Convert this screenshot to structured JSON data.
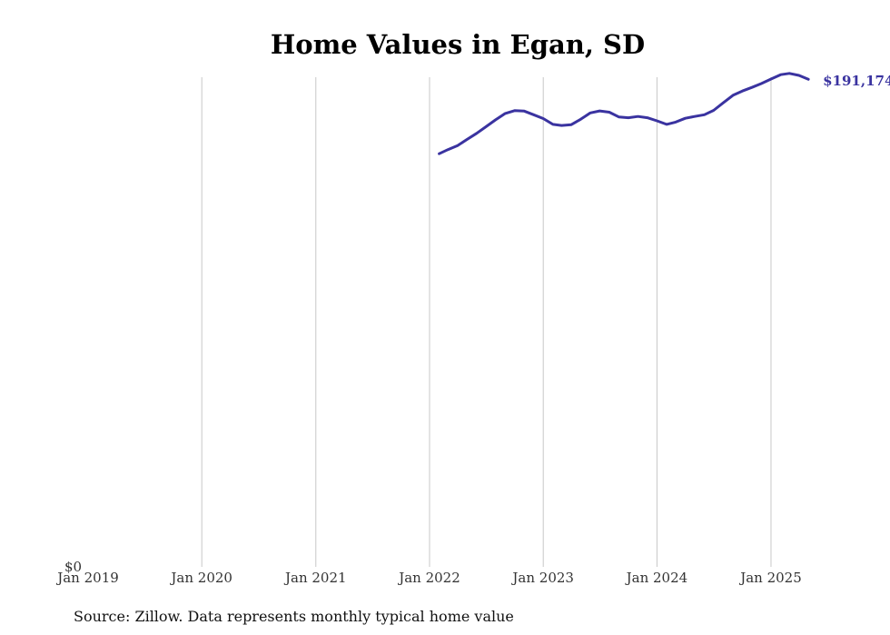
{
  "chart_data": {
    "type": "line",
    "title": "Home Values in Egan, SD",
    "xlabel": "",
    "ylabel": "",
    "x_ticks": [
      "Jan 2019",
      "Jan 2020",
      "Jan 2021",
      "Jan 2022",
      "Jan 2023",
      "Jan 2024",
      "Jan 2025"
    ],
    "y_tick_label": "$0",
    "ylim": [
      0,
      192000
    ],
    "grid": "vertical",
    "series": [
      {
        "color": "#3a33a0",
        "end_label": "$191,174",
        "points": [
          {
            "x": "2022-02",
            "y": 162000
          },
          {
            "x": "2022-03",
            "y": 163600
          },
          {
            "x": "2022-04",
            "y": 165200
          },
          {
            "x": "2022-05",
            "y": 167600
          },
          {
            "x": "2022-06",
            "y": 170000
          },
          {
            "x": "2022-07",
            "y": 172600
          },
          {
            "x": "2022-08",
            "y": 175300
          },
          {
            "x": "2022-09",
            "y": 177800
          },
          {
            "x": "2022-10",
            "y": 178900
          },
          {
            "x": "2022-11",
            "y": 178700
          },
          {
            "x": "2022-12",
            "y": 177300
          },
          {
            "x": "2023-01",
            "y": 175800
          },
          {
            "x": "2023-02",
            "y": 173500
          },
          {
            "x": "2023-03",
            "y": 173100
          },
          {
            "x": "2023-04",
            "y": 173400
          },
          {
            "x": "2023-05",
            "y": 175500
          },
          {
            "x": "2023-06",
            "y": 178000
          },
          {
            "x": "2023-07",
            "y": 178800
          },
          {
            "x": "2023-08",
            "y": 178300
          },
          {
            "x": "2023-09",
            "y": 176400
          },
          {
            "x": "2023-10",
            "y": 176100
          },
          {
            "x": "2023-11",
            "y": 176600
          },
          {
            "x": "2023-12",
            "y": 176100
          },
          {
            "x": "2024-01",
            "y": 174900
          },
          {
            "x": "2024-02",
            "y": 173500
          },
          {
            "x": "2024-03",
            "y": 174400
          },
          {
            "x": "2024-04",
            "y": 175900
          },
          {
            "x": "2024-05",
            "y": 176600
          },
          {
            "x": "2024-06",
            "y": 177300
          },
          {
            "x": "2024-07",
            "y": 179000
          },
          {
            "x": "2024-08",
            "y": 182000
          },
          {
            "x": "2024-09",
            "y": 184900
          },
          {
            "x": "2024-10",
            "y": 186600
          },
          {
            "x": "2024-11",
            "y": 188000
          },
          {
            "x": "2024-12",
            "y": 189500
          },
          {
            "x": "2025-01",
            "y": 191300
          },
          {
            "x": "2025-02",
            "y": 193000
          },
          {
            "x": "2025-03",
            "y": 193500
          },
          {
            "x": "2025-04",
            "y": 192700
          },
          {
            "x": "2025-05",
            "y": 191174
          }
        ]
      }
    ]
  },
  "footer": {
    "source": "Source: Zillow. Data represents monthly typical home value"
  }
}
